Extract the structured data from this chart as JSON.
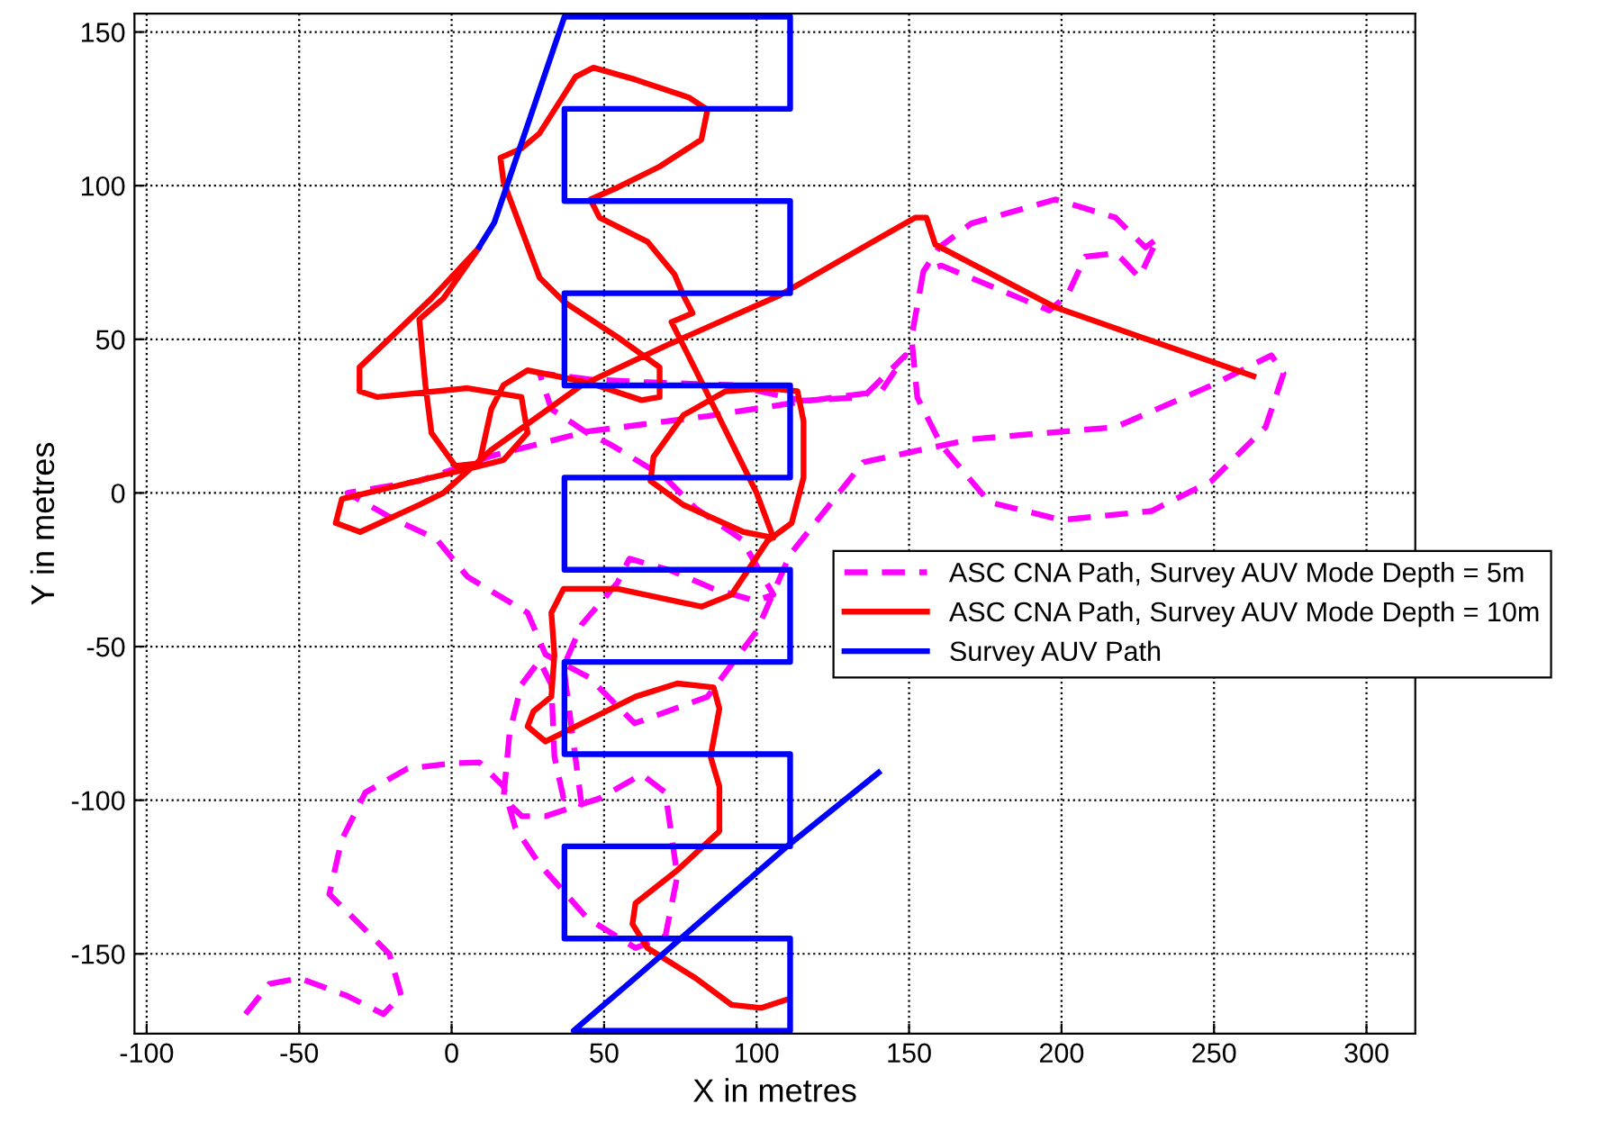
{
  "chart_data": {
    "type": "line",
    "xlabel": "X in metres",
    "ylabel": "Y in metres",
    "xlim": [
      -104,
      316
    ],
    "ylim": [
      -176,
      156
    ],
    "xticks": [
      -100,
      -50,
      0,
      50,
      100,
      150,
      200,
      250,
      300
    ],
    "yticks": [
      -150,
      -100,
      -50,
      0,
      50,
      100,
      150
    ],
    "grid": true,
    "legend": "right",
    "marker": "none",
    "series": [
      {
        "name": "ASC CNA Path, Survey AUV Mode Depth = 5m",
        "color": "#ff00ff",
        "line_style": "dashed",
        "x": [
          -67.6,
          -59.8,
          -49.9,
          -34.2,
          -22.4,
          -16.5,
          -20.4,
          -30.2,
          -40.1,
          -36.1,
          -28.3,
          -14.5,
          0,
          9.1,
          17,
          20.9,
          28.8,
          44.5,
          60.3,
          70.1,
          74,
          70.1,
          62.3,
          48.5,
          30.8,
          23,
          17,
          19,
          22.9,
          28.8,
          32.7,
          33.7,
          36.7,
          42.6,
          36.7,
          42.6,
          54.4,
          58.3,
          72.1,
          85.9,
          99.6,
          105.5,
          95,
          80,
          70,
          52.4,
          44.5,
          32.7,
          28.8,
          45,
          64.2,
          91.8,
          115,
          135,
          148.8,
          140.9,
          111.4,
          83.9,
          44.5,
          13,
          -10.6,
          -34.2,
          -20,
          -5,
          5.2,
          24.9,
          30.8,
          45,
          60,
          83.9,
          100,
          111,
          135,
          170.4,
          217.7,
          249.2,
          268.8,
          272.8,
          266.9,
          249.2,
          229.5,
          200,
          176.3,
          160.6,
          152.7,
          150.8,
          154.7,
          160.6,
          196,
          201.9,
          207.8,
          218,
          225.5,
          231.5,
          227.5,
          217.7,
          198,
          170.4,
          160,
          154.7
        ],
        "values": [
          -169.6,
          -159.8,
          -157.9,
          -163.7,
          -169.6,
          -163.7,
          -150.1,
          -140.3,
          -130.6,
          -113,
          -97.5,
          -89.7,
          -88,
          -87.7,
          -95.5,
          -109.1,
          -120.8,
          -138.4,
          -148.1,
          -144.2,
          -124.7,
          -97.5,
          -91.6,
          -99.4,
          -105.2,
          -105.2,
          -99.4,
          -78,
          -62.4,
          -54.6,
          -62.4,
          -85.8,
          -99.4,
          -101.4,
          -56.5,
          -42.9,
          -29.2,
          -21.4,
          -25.3,
          -31.2,
          -35.1,
          -33.1,
          -15,
          -5,
          5,
          15.6,
          19.5,
          27.3,
          39,
          37,
          36,
          35.1,
          30,
          31.2,
          44.8,
          33.1,
          29.2,
          25,
          20,
          12,
          3.9,
          0,
          -8,
          -15,
          -27.3,
          -39,
          -52.6,
          -60,
          -75,
          -66.3,
          -45,
          -20,
          10,
          17.5,
          21.4,
          35,
          44.8,
          38.9,
          21.4,
          3.9,
          -5.9,
          -8.8,
          -3,
          15.5,
          31.1,
          50.6,
          72.1,
          74,
          59.4,
          64.3,
          76.9,
          78,
          70.1,
          82.8,
          79.9,
          89.6,
          95.5,
          87.7,
          80,
          72.1
        ]
      },
      {
        "name": "ASC CNA Path, Survey AUV Mode Depth = 10m",
        "color": "#ff0000",
        "line_style": "solid",
        "x": [
          109.5,
          101.6,
          91.8,
          80,
          64.2,
          59.3,
          60.3,
          74,
          87.8,
          87.8,
          84.9,
          87.8,
          85.9,
          74,
          60.3,
          44.5,
          30.8,
          24.9,
          26.8,
          32.7,
          33.7,
          32.7,
          36.7,
          54.4,
          81.9,
          91.8,
          103.6,
          111.5,
          115.4,
          115.4,
          113.4,
          103.6,
          89.8,
          76,
          66.2,
          65.2,
          76,
          95.7,
          105.5,
          100,
          90,
          80,
          72.1,
          79,
          76,
          73.1,
          64.2,
          48.5,
          45.5,
          54.4,
          68.2,
          81.9,
          83.9,
          78,
          60.3,
          46.5,
          40.6,
          28.8,
          22.9,
          16,
          17,
          22.9,
          28.8,
          36.7,
          54.4,
          68.2,
          68.2,
          62.3,
          44.5,
          24.9,
          17,
          13,
          9.1,
          1.2,
          -6.6,
          -8.6,
          -10.6,
          -2.7,
          9.1,
          -6.6,
          -30.2,
          -30.2,
          -24.3,
          5.2,
          22.9,
          24.9,
          17,
          5.2,
          -36,
          -38,
          -30,
          -10.6,
          -2.7,
          13,
          42.6,
          72,
          107.5,
          135,
          152,
          155.7,
          158.6,
          198,
          262.9
        ],
        "values": [
          -165,
          -167.6,
          -166.6,
          -157.9,
          -148.1,
          -140.3,
          -133.5,
          -122.8,
          -110.1,
          -95.5,
          -85.8,
          -70.2,
          -63.3,
          -62,
          -66.3,
          -74.1,
          -80.9,
          -76,
          -71.1,
          -66.3,
          -52.6,
          -39,
          -31.2,
          -31.2,
          -37,
          -33.1,
          -15.6,
          -9.8,
          5,
          23.4,
          33.1,
          34.1,
          33.1,
          25.3,
          11.7,
          3.9,
          -3.9,
          -12.7,
          -14.6,
          0,
          20,
          40,
          55.6,
          58.5,
          64.3,
          71.1,
          81.8,
          89.6,
          95.5,
          99.4,
          106.2,
          115,
          124.7,
          128.6,
          134.5,
          138.4,
          135.4,
          117,
          112.1,
          109.1,
          101.3,
          85.7,
          70.1,
          62.3,
          50.7,
          40.9,
          31.2,
          30.2,
          36,
          39.9,
          35.1,
          27.3,
          9.7,
          8.8,
          19.5,
          35.1,
          56.5,
          63.3,
          79.9,
          63.3,
          40.9,
          33.1,
          31.2,
          34.1,
          31.2,
          19.5,
          10.7,
          7.8,
          -2,
          -9.8,
          -12.7,
          -3.9,
          0,
          14,
          35,
          48.7,
          64.3,
          80,
          89.6,
          89.6,
          80.8,
          60.4,
          38
        ]
      },
      {
        "name": "Survey AUV Path",
        "color": "#0000ff",
        "line_style": "solid",
        "x": [
          9,
          14,
          25,
          37,
          111,
          111,
          37,
          37,
          111,
          111,
          37,
          37,
          111,
          111,
          37,
          37,
          111,
          111,
          37,
          37,
          111,
          111,
          37,
          37,
          111,
          111,
          40,
          60,
          110,
          140
        ],
        "values": [
          80,
          88,
          120,
          155,
          155,
          125,
          125,
          95,
          95,
          65,
          65,
          35,
          35,
          5,
          5,
          -25,
          -25,
          -55,
          -55,
          -85,
          -85,
          -115,
          -115,
          -145,
          -145,
          -175,
          -175,
          -158,
          -115,
          -91
        ]
      }
    ]
  }
}
